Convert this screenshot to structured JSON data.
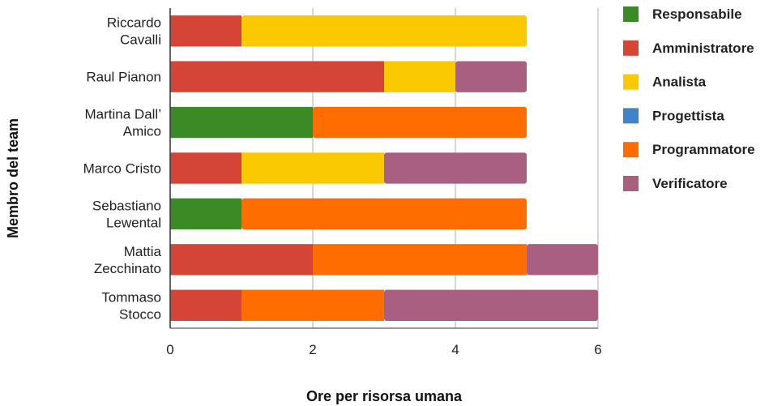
{
  "chart_data": {
    "type": "bar",
    "orientation": "horizontal",
    "stacked": true,
    "categories": [
      [
        "Riccardo",
        "Cavalli"
      ],
      [
        "Raul Pianon"
      ],
      [
        "Martina Dall’",
        "Amico"
      ],
      [
        "Marco Cristo"
      ],
      [
        "Sebastiano",
        "Lewental"
      ],
      [
        "Mattia",
        "Zecchinato"
      ],
      [
        "Tommaso",
        "Stocco"
      ]
    ],
    "series": [
      {
        "name": "Responsabile",
        "color": "#3a8a26",
        "values": [
          0,
          0,
          2,
          0,
          1,
          0,
          0
        ]
      },
      {
        "name": "Amministratore",
        "color": "#d54535",
        "values": [
          1,
          3,
          0,
          1,
          0,
          2,
          1
        ]
      },
      {
        "name": "Analista",
        "color": "#fbc902",
        "values": [
          4,
          1,
          0,
          2,
          0,
          0,
          0
        ]
      },
      {
        "name": "Progettista",
        "color": "#3f83c8",
        "values": [
          0,
          0,
          0,
          0,
          0,
          0,
          0
        ]
      },
      {
        "name": "Programmatore",
        "color": "#ff6d00",
        "values": [
          0,
          0,
          3,
          0,
          4,
          3,
          2
        ]
      },
      {
        "name": "Verificatore",
        "color": "#a85f80",
        "values": [
          0,
          1,
          0,
          2,
          0,
          1,
          3
        ]
      }
    ],
    "xlabel": "Ore per risorsa umana",
    "ylabel": "Membro del team",
    "xlim": [
      0,
      6
    ],
    "xticks": [
      0,
      2,
      4,
      6
    ],
    "grid": true,
    "legend_position": "right"
  }
}
